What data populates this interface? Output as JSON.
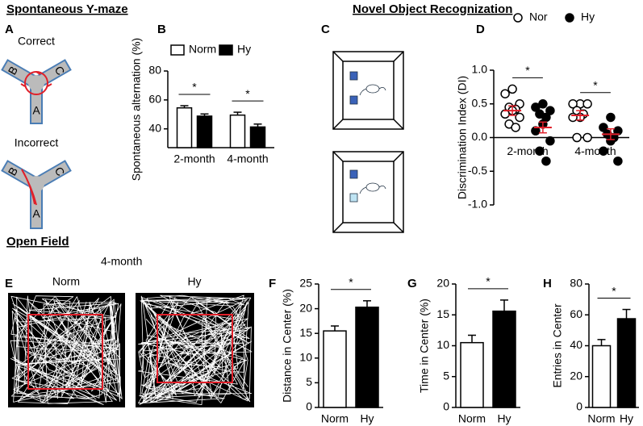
{
  "headings": {
    "ymaze": "Spontaneous Y-maze",
    "nor": "Novel Object Recognization",
    "openfield": "Open Field",
    "age": "4-month"
  },
  "panels": {
    "a": "A",
    "c": "C",
    "e": "E"
  },
  "ymaze": {
    "correct": "Correct",
    "incorrect": "Incorrect",
    "arms": [
      "A",
      "B",
      "C"
    ]
  },
  "openfield": {
    "groups": [
      "Norm",
      "Hy"
    ]
  },
  "chart_data": [
    {
      "type": "bar",
      "label": "B",
      "y_label": "Spontaneous alternation (%)",
      "categories": [
        "2-month",
        "4-month"
      ],
      "series": [
        {
          "name": "Norm",
          "color": "#ffffff",
          "values": [
            54.5,
            49.5
          ],
          "errors": [
            1.5,
            2
          ]
        },
        {
          "name": "Hy",
          "color": "#000000",
          "values": [
            48.8,
            41.3
          ],
          "errors": [
            1.5,
            2
          ]
        }
      ],
      "significance": [
        "*",
        "*"
      ],
      "ylim": [
        27,
        80
      ],
      "yticks": [
        40,
        60,
        80
      ]
    },
    {
      "type": "dot",
      "label": "D",
      "y_label": "Discrimination Index (DI)",
      "categories": [
        "2-month",
        "4-month"
      ],
      "series": [
        {
          "name": "Nor",
          "color": "#ffffff",
          "values": [
            [
              0.72,
              0.65,
              0.5,
              0.45,
              0.42,
              0.4,
              0.35,
              0.3,
              0.2,
              0.15
            ],
            [
              0.5,
              0.5,
              0.5,
              0.4,
              0.35,
              0.3,
              0.3,
              0,
              0
            ]
          ],
          "means": [
            0.4,
            0.33
          ],
          "errors": [
            0.07,
            0.07
          ]
        },
        {
          "name": "Hy",
          "color": "#000000",
          "values": [
            [
              0.5,
              0.45,
              0.4,
              0.35,
              0.3,
              0.2,
              0.1,
              -0.05,
              -0.2,
              -0.35
            ],
            [
              0.3,
              0.15,
              0.1,
              0.05,
              0,
              -0.05,
              -0.2,
              -0.35
            ]
          ],
          "means": [
            0.15,
            0.05
          ],
          "errors": [
            0.08,
            0.08
          ]
        }
      ],
      "significance": [
        "*",
        "*"
      ],
      "mean_color": "#e0202a",
      "ylim": [
        -1,
        1
      ],
      "yticks": [
        {
          "value": -1,
          "label": "-1.0"
        },
        {
          "value": -0.5,
          "label": "-0.5"
        },
        {
          "value": 0,
          "label": "0.0"
        },
        {
          "value": 0.5,
          "label": "0.5"
        },
        {
          "value": 1,
          "label": "1.0"
        }
      ]
    },
    {
      "type": "bar",
      "label": "F",
      "y_label": "Distance in Center (%)",
      "categories": [
        "Norm",
        "Hy"
      ],
      "values": [
        15.5,
        20.3
      ],
      "errors": [
        1,
        1.3
      ],
      "colors": [
        "#ffffff",
        "#000000"
      ],
      "significance": "*",
      "ylim": [
        0,
        25
      ],
      "yticks": [
        0,
        5,
        10,
        15,
        20,
        25
      ]
    },
    {
      "type": "bar",
      "label": "G",
      "y_label": "Time in Center (%)",
      "categories": [
        "Norm",
        "Hy"
      ],
      "values": [
        10.5,
        15.6
      ],
      "errors": [
        1.2,
        1.8
      ],
      "colors": [
        "#ffffff",
        "#000000"
      ],
      "significance": "*",
      "ylim": [
        0,
        20
      ],
      "yticks": [
        0,
        5,
        10,
        15,
        20
      ]
    },
    {
      "type": "bar",
      "label": "H",
      "y_label": "Entries in Center",
      "categories": [
        "Norm",
        "Hy"
      ],
      "values": [
        40,
        57.5
      ],
      "errors": [
        4,
        6
      ],
      "colors": [
        "#ffffff",
        "#000000"
      ],
      "significance": "*",
      "ylim": [
        0,
        80
      ],
      "yticks": [
        0,
        20,
        40,
        60,
        80
      ]
    }
  ]
}
